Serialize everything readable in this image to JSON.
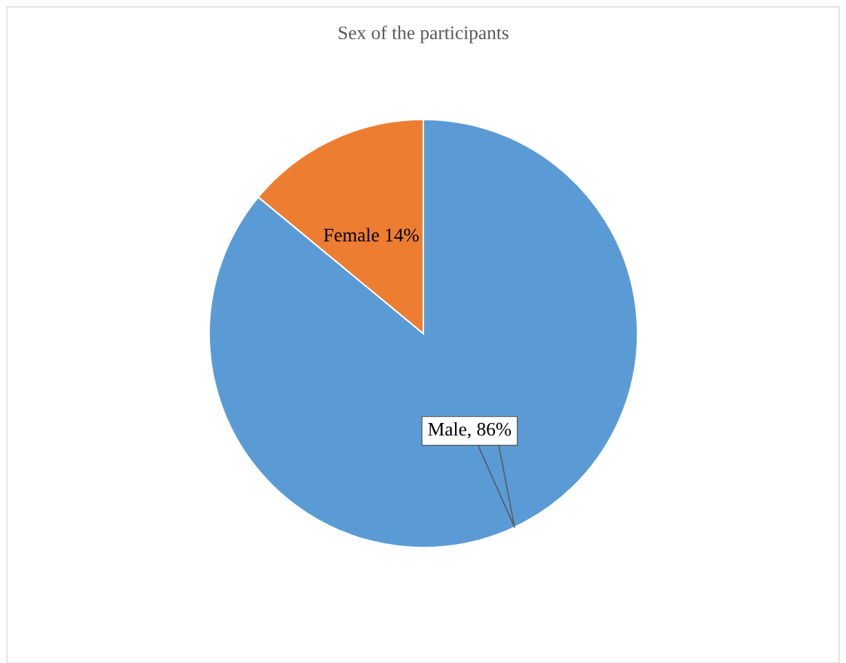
{
  "chart_data": {
    "type": "pie",
    "title": "Sex of the participants",
    "categories": [
      "Male",
      "Female"
    ],
    "values": [
      86,
      14
    ],
    "colors": [
      "#5b9bd5",
      "#ed7d31"
    ],
    "value_labels": [
      "86%",
      "14%"
    ]
  }
}
